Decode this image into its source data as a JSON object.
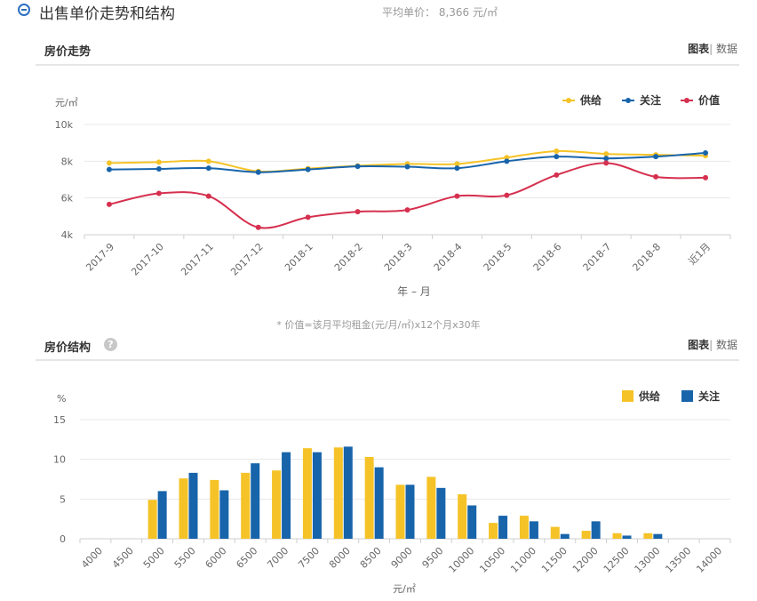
{
  "header": {
    "title": "出售单价走势和结构",
    "avg_price": "平均单价： 8,366 元/㎡"
  },
  "trend_section": {
    "title": "房价走势",
    "tab_chart": "图表",
    "tab_sep": "|",
    "tab_data": "数据",
    "note": "* 价值=该月平均租金(元/月/㎡)x12个月x30年"
  },
  "structure_section": {
    "title": "房价结构",
    "help": "?",
    "tab_chart": "图表",
    "tab_sep": "|",
    "tab_data": "数据"
  },
  "colors": {
    "supply": "#f5c327",
    "attention": "#1864ab",
    "value": "#d6304f",
    "grid": "#e8e8e8",
    "axis_text": "#666666"
  },
  "chart_data": [
    {
      "type": "line",
      "title": "",
      "ylabel": "元/㎡",
      "xlabel": "年 – 月",
      "x": [
        "2017-9",
        "2017-10",
        "2017-11",
        "2017-12",
        "2018-1",
        "2018-2",
        "2018-3",
        "2018-4",
        "2018-5",
        "2018-6",
        "2018-7",
        "2018-8",
        "近1月"
      ],
      "ylim": [
        4000,
        10000
      ],
      "yticks": [
        4000,
        6000,
        8000,
        10000
      ],
      "ytick_labels": [
        "4k",
        "6k",
        "8k",
        "10k"
      ],
      "grid": true,
      "legend": "top-right",
      "series": [
        {
          "name": "供给",
          "color": "#f5c327",
          "values": [
            7900,
            7950,
            8000,
            7450,
            7600,
            7750,
            7850,
            7850,
            8200,
            8550,
            8400,
            8350,
            8300
          ]
        },
        {
          "name": "关注",
          "color": "#1864ab",
          "values": [
            7550,
            7580,
            7620,
            7400,
            7550,
            7720,
            7700,
            7620,
            8000,
            8250,
            8150,
            8250,
            8450
          ]
        },
        {
          "name": "价值",
          "color": "#d6304f",
          "values": [
            5650,
            6250,
            6100,
            4400,
            4950,
            5250,
            5350,
            6100,
            6150,
            7250,
            7900,
            7150,
            7100
          ]
        }
      ]
    },
    {
      "type": "bar",
      "title": "",
      "ylabel": "%",
      "xlabel": "元/㎡",
      "categories": [
        "4000",
        "4500",
        "5000",
        "5500",
        "6000",
        "6500",
        "7000",
        "7500",
        "8000",
        "8500",
        "9000",
        "9500",
        "10000",
        "10500",
        "11000",
        "11500",
        "12000",
        "12500",
        "13000",
        "13500",
        "14000"
      ],
      "ylim": [
        0,
        15
      ],
      "yticks": [
        0,
        5,
        10,
        15
      ],
      "grid": true,
      "legend": "top-right",
      "series": [
        {
          "name": "供给",
          "color": "#f5c327",
          "values": [
            0,
            0,
            4.9,
            7.6,
            7.4,
            8.3,
            8.6,
            11.4,
            11.5,
            10.3,
            6.8,
            7.8,
            5.6,
            2.0,
            2.9,
            1.5,
            1.0,
            0.7,
            0.7,
            0,
            0
          ]
        },
        {
          "name": "关注",
          "color": "#1864ab",
          "values": [
            0,
            0,
            6.0,
            8.3,
            6.1,
            9.5,
            10.9,
            10.9,
            11.6,
            9.0,
            6.8,
            6.4,
            4.2,
            2.9,
            2.2,
            0.6,
            2.2,
            0.4,
            0.6,
            0,
            0
          ]
        }
      ]
    }
  ]
}
